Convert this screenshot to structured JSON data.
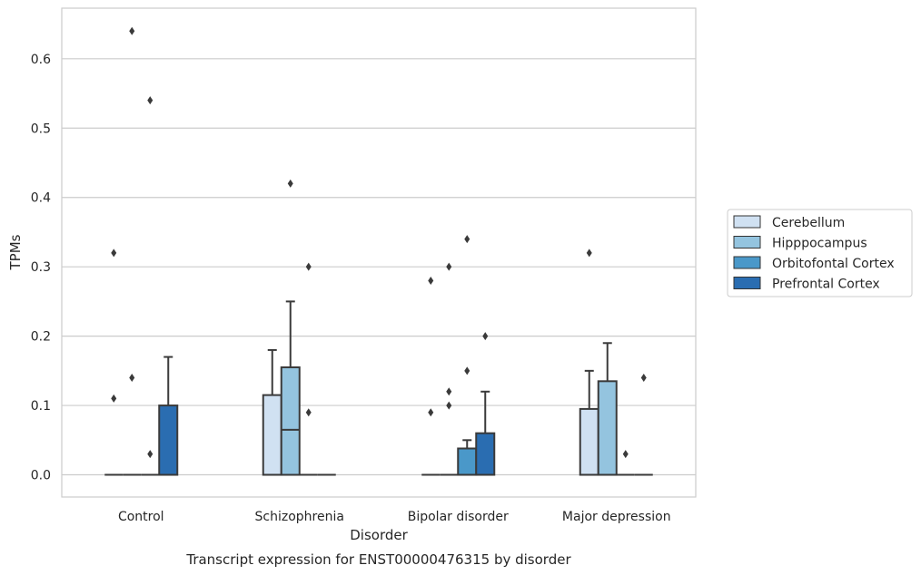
{
  "chart_data": {
    "type": "box",
    "caption": "Transcript expression for ENST00000476315 by disorder",
    "xlabel": "Disorder",
    "ylabel": "TPMs",
    "ylim": [
      -0.032,
      0.673
    ],
    "yticks": [
      "0.0",
      "0.1",
      "0.2",
      "0.3",
      "0.4",
      "0.5",
      "0.6"
    ],
    "grid": true,
    "legend_position": "right",
    "categories": [
      "Control",
      "Schizophrenia",
      "Bipolar disorder",
      "Major depression"
    ],
    "series": [
      {
        "name": "Cerebellum",
        "color": "#d0e1f2",
        "boxes": [
          {
            "q1": 0,
            "median": 0,
            "q3": 0,
            "whisker_low": 0,
            "whisker_high": 0,
            "outliers": [
              0.32,
              0.11
            ]
          },
          {
            "q1": 0,
            "median": 0,
            "q3": 0.115,
            "whisker_low": 0,
            "whisker_high": 0.18,
            "outliers": []
          },
          {
            "q1": 0,
            "median": 0,
            "q3": 0,
            "whisker_low": 0,
            "whisker_high": 0,
            "outliers": [
              0.28,
              0.09
            ]
          },
          {
            "q1": 0,
            "median": 0,
            "q3": 0.095,
            "whisker_low": 0,
            "whisker_high": 0.15,
            "outliers": [
              0.32
            ]
          }
        ]
      },
      {
        "name": "Hipppocampus",
        "color": "#94c4df",
        "boxes": [
          {
            "q1": 0,
            "median": 0,
            "q3": 0,
            "whisker_low": 0,
            "whisker_high": 0,
            "outliers": [
              0.64,
              0.14
            ]
          },
          {
            "q1": 0,
            "median": 0.065,
            "q3": 0.155,
            "whisker_low": 0,
            "whisker_high": 0.25,
            "outliers": [
              0.42
            ]
          },
          {
            "q1": 0,
            "median": 0,
            "q3": 0,
            "whisker_low": 0,
            "whisker_high": 0,
            "outliers": [
              0.3,
              0.12,
              0.1
            ]
          },
          {
            "q1": 0,
            "median": 0,
            "q3": 0.135,
            "whisker_low": 0,
            "whisker_high": 0.19,
            "outliers": []
          }
        ]
      },
      {
        "name": "Orbitofontal Cortex",
        "color": "#4a98c9",
        "boxes": [
          {
            "q1": 0,
            "median": 0,
            "q3": 0,
            "whisker_low": 0,
            "whisker_high": 0,
            "outliers": [
              0.54,
              0.03
            ]
          },
          {
            "q1": 0,
            "median": 0,
            "q3": 0,
            "whisker_low": 0,
            "whisker_high": 0,
            "outliers": [
              0.3,
              0.09
            ]
          },
          {
            "q1": 0,
            "median": 0,
            "q3": 0.038,
            "whisker_low": 0,
            "whisker_high": 0.05,
            "outliers": [
              0.34,
              0.15
            ]
          },
          {
            "q1": 0,
            "median": 0,
            "q3": 0,
            "whisker_low": 0,
            "whisker_high": 0,
            "outliers": [
              0.03
            ]
          }
        ]
      },
      {
        "name": "Prefrontal Cortex",
        "color": "#2a6db1",
        "boxes": [
          {
            "q1": 0,
            "median": 0,
            "q3": 0.1,
            "whisker_low": 0,
            "whisker_high": 0.17,
            "outliers": []
          },
          {
            "q1": 0,
            "median": 0,
            "q3": 0,
            "whisker_low": 0,
            "whisker_high": 0,
            "outliers": []
          },
          {
            "q1": 0,
            "median": 0,
            "q3": 0.06,
            "whisker_low": 0,
            "whisker_high": 0.12,
            "outliers": [
              0.2
            ]
          },
          {
            "q1": 0,
            "median": 0,
            "q3": 0,
            "whisker_low": 0,
            "whisker_high": 0,
            "outliers": [
              0.14
            ]
          }
        ]
      }
    ]
  }
}
